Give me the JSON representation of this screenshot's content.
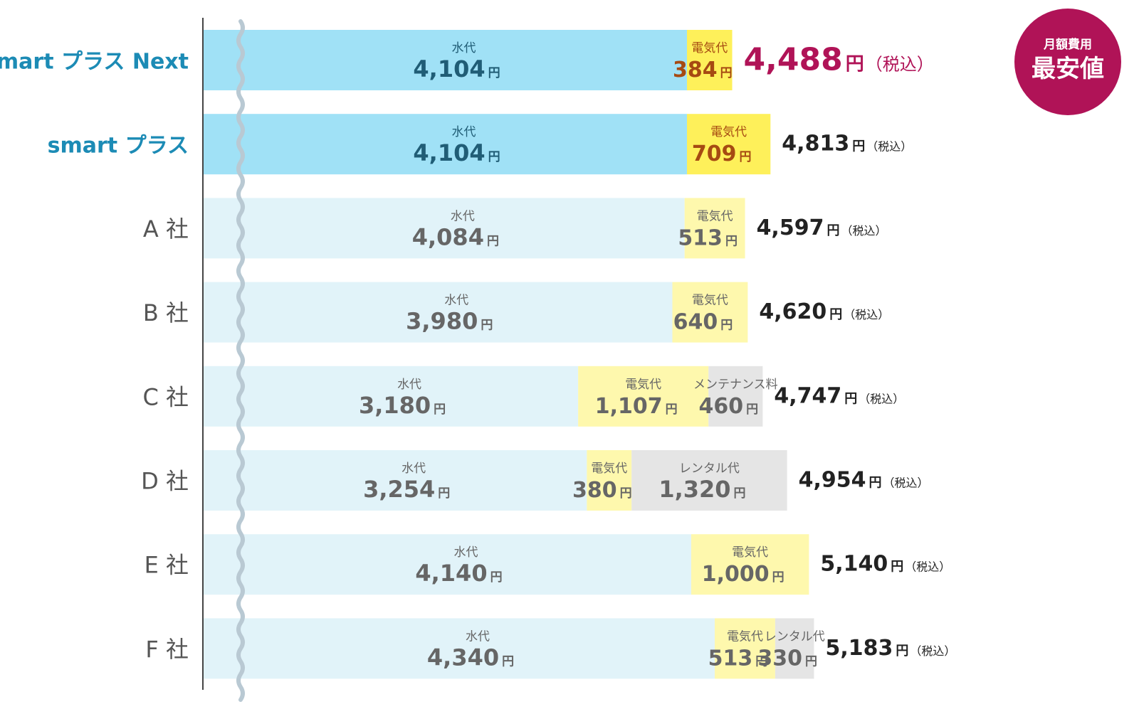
{
  "chart_data": {
    "type": "bar",
    "stacked": true,
    "orientation": "horizontal",
    "unit": "円",
    "tax_note": "（税込）",
    "axis_break": true,
    "categories": [
      "smart プラス Next",
      "smart プラス",
      "A 社",
      "B 社",
      "C 社",
      "D 社",
      "E 社",
      "F 社"
    ],
    "highlight_rows": [
      0,
      1
    ],
    "rows": [
      {
        "label": "smart プラス Next",
        "total": "4,488",
        "best": true,
        "segments": [
          {
            "label": "水代",
            "value": 4104,
            "display": "4,104",
            "kind": "water"
          },
          {
            "label": "電気代",
            "value": 384,
            "display": "384",
            "kind": "electricity"
          }
        ]
      },
      {
        "label": "smart プラス",
        "total": "4,813",
        "segments": [
          {
            "label": "水代",
            "value": 4104,
            "display": "4,104",
            "kind": "water"
          },
          {
            "label": "電気代",
            "value": 709,
            "display": "709",
            "kind": "electricity"
          }
        ]
      },
      {
        "label": "A 社",
        "total": "4,597",
        "segments": [
          {
            "label": "水代",
            "value": 4084,
            "display": "4,084",
            "kind": "water"
          },
          {
            "label": "電気代",
            "value": 513,
            "display": "513",
            "kind": "electricity"
          }
        ]
      },
      {
        "label": "B 社",
        "total": "4,620",
        "segments": [
          {
            "label": "水代",
            "value": 3980,
            "display": "3,980",
            "kind": "water"
          },
          {
            "label": "電気代",
            "value": 640,
            "display": "640",
            "kind": "electricity"
          }
        ]
      },
      {
        "label": "C 社",
        "total": "4,747",
        "segments": [
          {
            "label": "水代",
            "value": 3180,
            "display": "3,180",
            "kind": "water"
          },
          {
            "label": "電気代",
            "value": 1107,
            "display": "1,107",
            "kind": "electricity"
          },
          {
            "label": "メンテナンス料",
            "value": 460,
            "display": "460",
            "kind": "other"
          }
        ]
      },
      {
        "label": "D 社",
        "total": "4,954",
        "segments": [
          {
            "label": "水代",
            "value": 3254,
            "display": "3,254",
            "kind": "water"
          },
          {
            "label": "電気代",
            "value": 380,
            "display": "380",
            "kind": "electricity"
          },
          {
            "label": "レンタル代",
            "value": 1320,
            "display": "1,320",
            "kind": "other"
          }
        ]
      },
      {
        "label": "E 社",
        "total": "5,140",
        "segments": [
          {
            "label": "水代",
            "value": 4140,
            "display": "4,140",
            "kind": "water"
          },
          {
            "label": "電気代",
            "value": 1000,
            "display": "1,000",
            "kind": "electricity"
          }
        ]
      },
      {
        "label": "F 社",
        "total": "5,183",
        "segments": [
          {
            "label": "水代",
            "value": 4340,
            "display": "4,340",
            "kind": "water"
          },
          {
            "label": "電気代",
            "value": 513,
            "display": "513",
            "kind": "electricity"
          },
          {
            "label": "レンタル代",
            "value": 330,
            "display": "330",
            "kind": "other"
          }
        ]
      }
    ],
    "badge": {
      "line1": "月額費用",
      "line2": "最安値"
    },
    "colors": {
      "highlight_water": "#a0e1f6",
      "highlight_elec": "#fef05a",
      "water": "#e1f3f9",
      "elec": "#fef8ad",
      "other": "#e5e5e5",
      "highlight_label": "#1c8bb5",
      "highlight_value": "#205d76",
      "highlight_elec_text": "#a64a12",
      "normal_value": "#666666",
      "normal_label": "#555555",
      "best_total": "#b01357",
      "badge_bg": "#b01357",
      "break_line": "#b9c9d3",
      "axis": "#444444"
    }
  }
}
